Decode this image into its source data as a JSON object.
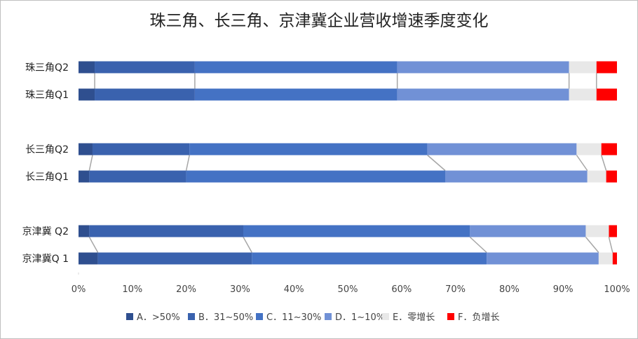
{
  "chart_data": {
    "type": "bar",
    "orientation": "horizontal",
    "stacked": "percent",
    "title": "珠三角、长三角、京津冀企业营收增速季度变化",
    "categories": [
      "珠三角Q2",
      "珠三角Q1",
      "长三角Q2",
      "长三角Q1",
      "京津冀 Q2",
      "京津冀Q 1"
    ],
    "series": [
      {
        "name": "A．>50%",
        "color": "#2F4F8F",
        "values": [
          3.0,
          3.0,
          2.6,
          2.0,
          2.0,
          3.6
        ]
      },
      {
        "name": "B．31~50%",
        "color": "#3A62AE",
        "values": [
          18.6,
          18.6,
          18.0,
          18.0,
          28.6,
          28.6
        ]
      },
      {
        "name": "C．11~30%",
        "color": "#4472C4",
        "values": [
          37.6,
          37.6,
          44.2,
          48.1,
          42.1,
          43.6
        ]
      },
      {
        "name": "D．1~10%",
        "color": "#7191D6",
        "values": [
          31.9,
          31.9,
          27.7,
          26.4,
          21.5,
          20.8
        ]
      },
      {
        "name": "E．零增长",
        "color": "#E8E8E8",
        "values": [
          5.1,
          5.1,
          4.6,
          3.5,
          4.3,
          2.6
        ]
      },
      {
        "name": "F．负增长",
        "color": "#FF0000",
        "values": [
          3.8,
          3.8,
          2.9,
          2.0,
          1.5,
          0.8
        ]
      }
    ],
    "xlim": [
      0,
      100
    ],
    "x_ticks": [
      "0%",
      "10%",
      "20%",
      "30%",
      "40%",
      "50%",
      "60%",
      "70%",
      "80%",
      "90%",
      "100%"
    ],
    "series_lines": true,
    "legend_position": "bottom",
    "grid": false
  }
}
